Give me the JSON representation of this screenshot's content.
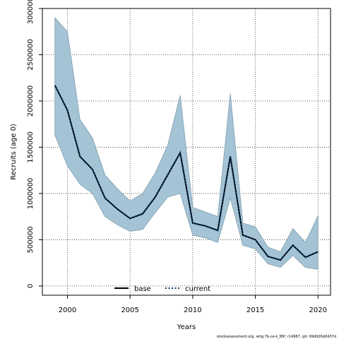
{
  "chart_data": {
    "type": "line",
    "xlabel": "Years",
    "ylabel": "Recruits (age 0)",
    "xlim": [
      1998,
      2021
    ],
    "ylim": [
      -100000,
      3000000
    ],
    "x_ticks": [
      2000,
      2005,
      2010,
      2015,
      2020
    ],
    "y_ticks": [
      0,
      500000,
      1000000,
      1500000,
      2000000,
      2500000,
      3000000
    ],
    "grid": true,
    "legend_position": "bottom-center",
    "x": [
      1999,
      2000,
      2001,
      2002,
      2003,
      2004,
      2005,
      2006,
      2007,
      2008,
      2009,
      2010,
      2011,
      2012,
      2013,
      2014,
      2015,
      2016,
      2017,
      2018,
      2019,
      2020
    ],
    "band": {
      "upper": [
        2900000,
        2750000,
        1800000,
        1600000,
        1200000,
        1050000,
        920000,
        1000000,
        1220000,
        1520000,
        2060000,
        850000,
        800000,
        750000,
        2080000,
        680000,
        640000,
        420000,
        370000,
        620000,
        470000,
        760000
      ],
      "lower": [
        1630000,
        1300000,
        1100000,
        1000000,
        750000,
        660000,
        590000,
        610000,
        790000,
        960000,
        1000000,
        550000,
        520000,
        470000,
        950000,
        440000,
        400000,
        240000,
        200000,
        330000,
        200000,
        180000
      ],
      "color": "#A4C3D5",
      "edge_color": "#7F9FAF"
    },
    "series": [
      {
        "name": "base",
        "style": "solid",
        "color": "#000000",
        "values": [
          2170000,
          1900000,
          1400000,
          1260000,
          950000,
          830000,
          730000,
          780000,
          960000,
          1200000,
          1440000,
          680000,
          650000,
          600000,
          1400000,
          550000,
          500000,
          320000,
          280000,
          440000,
          310000,
          370000
        ]
      },
      {
        "name": "current",
        "style": "dotted",
        "color": "#0B3A6B",
        "values": [
          2170000,
          1900000,
          1400000,
          1260000,
          950000,
          830000,
          730000,
          780000,
          960000,
          1200000,
          1440000,
          680000,
          650000,
          600000,
          1400000,
          550000,
          500000,
          320000,
          280000,
          440000,
          310000,
          370000
        ]
      }
    ],
    "footer": "stockassessment.org, whg.7b-ce-k_IBP, r14967, git: 69d926d0437d"
  }
}
